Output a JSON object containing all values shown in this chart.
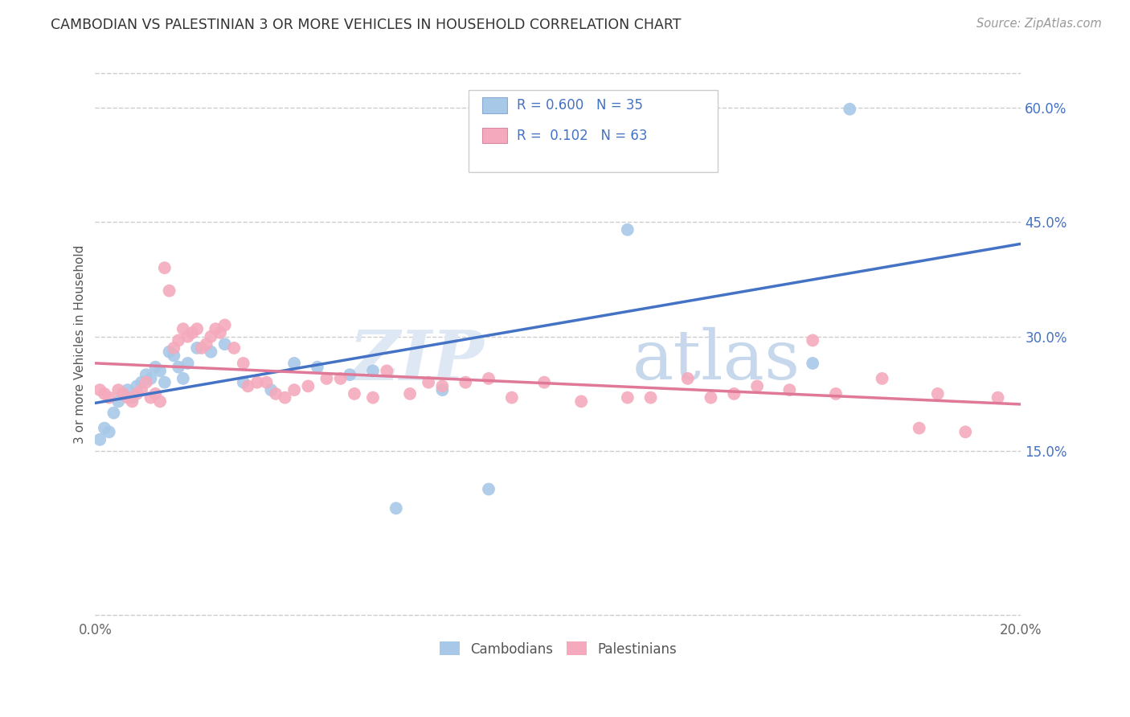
{
  "title": "CAMBODIAN VS PALESTINIAN 3 OR MORE VEHICLES IN HOUSEHOLD CORRELATION CHART",
  "source": "Source: ZipAtlas.com",
  "ylabel": "3 or more Vehicles in Household",
  "x_min": 0.0,
  "x_max": 0.2,
  "y_min": -0.07,
  "y_max": 0.65,
  "y_ticks_right": [
    0.15,
    0.3,
    0.45,
    0.6
  ],
  "y_tick_labels_right": [
    "15.0%",
    "30.0%",
    "45.0%",
    "60.0%"
  ],
  "grid_color": "#cccccc",
  "background_color": "#ffffff",
  "cambodian_color": "#a8c8e8",
  "palestinian_color": "#f4aabc",
  "cambodian_line_color": "#4472c4",
  "palestinian_line_color": "#e07898",
  "legend_cambodian_label": "Cambodians",
  "legend_palestinian_label": "Palestinians",
  "R_cambodian": "0.600",
  "N_cambodian": "35",
  "R_palestinian": "0.102",
  "N_palestinian": "63",
  "watermark_zip": "ZIP",
  "watermark_atlas": "atlas",
  "cambodian_x": [
    0.001,
    0.002,
    0.003,
    0.004,
    0.005,
    0.006,
    0.007,
    0.008,
    0.009,
    0.01,
    0.011,
    0.012,
    0.013,
    0.014,
    0.015,
    0.016,
    0.017,
    0.018,
    0.019,
    0.02,
    0.022,
    0.025,
    0.028,
    0.032,
    0.038,
    0.043,
    0.048,
    0.055,
    0.06,
    0.065,
    0.075,
    0.085,
    0.115,
    0.155,
    0.163
  ],
  "cambodian_y": [
    0.165,
    0.18,
    0.175,
    0.2,
    0.215,
    0.225,
    0.23,
    0.22,
    0.235,
    0.24,
    0.25,
    0.245,
    0.26,
    0.255,
    0.24,
    0.28,
    0.275,
    0.26,
    0.245,
    0.265,
    0.285,
    0.28,
    0.29,
    0.24,
    0.23,
    0.265,
    0.26,
    0.25,
    0.255,
    0.075,
    0.23,
    0.1,
    0.44,
    0.265,
    0.598
  ],
  "palestinian_x": [
    0.001,
    0.002,
    0.003,
    0.005,
    0.006,
    0.007,
    0.008,
    0.009,
    0.01,
    0.011,
    0.012,
    0.013,
    0.014,
    0.015,
    0.016,
    0.017,
    0.018,
    0.019,
    0.02,
    0.021,
    0.022,
    0.023,
    0.024,
    0.025,
    0.026,
    0.027,
    0.028,
    0.03,
    0.032,
    0.033,
    0.035,
    0.037,
    0.039,
    0.041,
    0.043,
    0.046,
    0.05,
    0.053,
    0.056,
    0.06,
    0.063,
    0.068,
    0.072,
    0.075,
    0.08,
    0.085,
    0.09,
    0.097,
    0.105,
    0.115,
    0.12,
    0.128,
    0.133,
    0.138,
    0.143,
    0.15,
    0.155,
    0.16,
    0.17,
    0.178,
    0.182,
    0.188,
    0.195
  ],
  "palestinian_y": [
    0.23,
    0.225,
    0.22,
    0.23,
    0.225,
    0.22,
    0.215,
    0.225,
    0.23,
    0.24,
    0.22,
    0.225,
    0.215,
    0.39,
    0.36,
    0.285,
    0.295,
    0.31,
    0.3,
    0.305,
    0.31,
    0.285,
    0.29,
    0.3,
    0.31,
    0.305,
    0.315,
    0.285,
    0.265,
    0.235,
    0.24,
    0.24,
    0.225,
    0.22,
    0.23,
    0.235,
    0.245,
    0.245,
    0.225,
    0.22,
    0.255,
    0.225,
    0.24,
    0.235,
    0.24,
    0.245,
    0.22,
    0.24,
    0.215,
    0.22,
    0.22,
    0.245,
    0.22,
    0.225,
    0.235,
    0.23,
    0.295,
    0.225,
    0.245,
    0.18,
    0.225,
    0.175,
    0.22
  ]
}
